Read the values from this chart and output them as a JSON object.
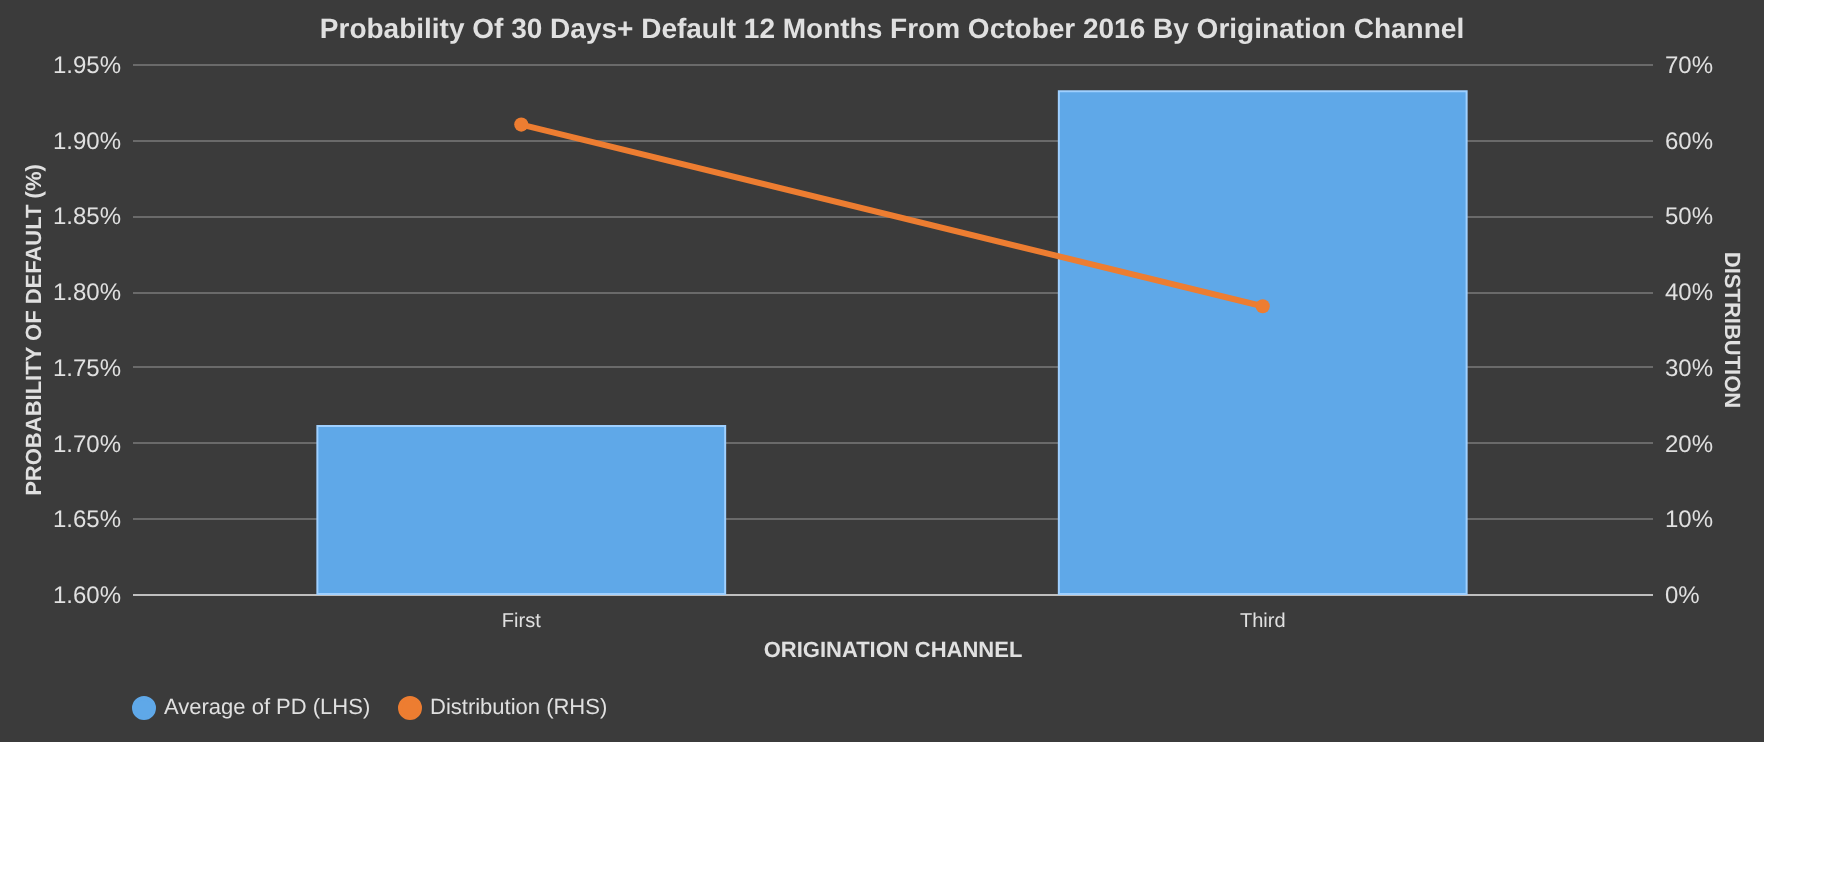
{
  "chart_data": {
    "type": "bar",
    "title": "Probability  Of 30 Days+ Default 12 Months From October 2016 By Origination Channel",
    "xlabel": "ORIGINATION CHANNEL",
    "ylabel": "PROBABILITY OF DEFAULT (%)",
    "y2label": "DISTRIBUTION",
    "categories": [
      "First",
      "Third"
    ],
    "series": [
      {
        "name": "Average of PD (LHS)",
        "color": "#5fa8e8",
        "values": [
          1.711,
          1.932
        ]
      },
      {
        "name": "Distribution (RHS)",
        "type": "line",
        "axis": "y2",
        "color": "#ed7d31",
        "values": [
          62,
          38
        ],
        "marker": "circle",
        "line_style": "solid"
      }
    ],
    "ylim": [
      1.6,
      1.95
    ],
    "yticks": [
      {
        "value": 1.6,
        "label": "1.60%"
      },
      {
        "value": 1.65,
        "label": "1.65%"
      },
      {
        "value": 1.7,
        "label": "1.70%"
      },
      {
        "value": 1.75,
        "label": "1.75%"
      },
      {
        "value": 1.8,
        "label": "1.80%"
      },
      {
        "value": 1.85,
        "label": "1.85%"
      },
      {
        "value": 1.9,
        "label": "1.90%"
      },
      {
        "value": 1.95,
        "label": "1.95%"
      }
    ],
    "y2lim": [
      0,
      70
    ],
    "y2ticks": [
      {
        "value": 0,
        "label": "0%"
      },
      {
        "value": 10,
        "label": "10%"
      },
      {
        "value": 20,
        "label": "20%"
      },
      {
        "value": 30,
        "label": "30%"
      },
      {
        "value": 40,
        "label": "40%"
      },
      {
        "value": 50,
        "label": "50%"
      },
      {
        "value": 60,
        "label": "60%"
      },
      {
        "value": 70,
        "label": "70%"
      }
    ],
    "grid": "y",
    "legend": "bottom"
  }
}
